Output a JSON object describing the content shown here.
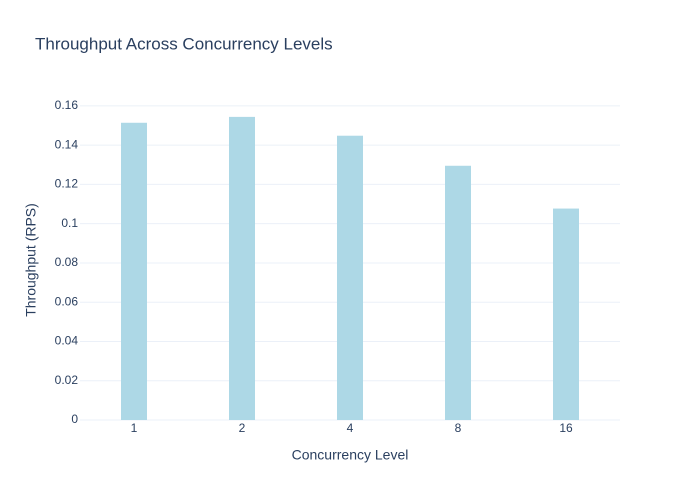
{
  "chart_data": {
    "type": "bar",
    "title": "Throughput Across Concurrency Levels",
    "x_label": "Concurrency Level",
    "y_label": "Throughput (RPS)",
    "categories": [
      "1",
      "2",
      "4",
      "8",
      "16"
    ],
    "values": [
      0.1514,
      0.1544,
      0.1448,
      0.1295,
      0.1077
    ],
    "color": "#add8e6",
    "ylim": [
      0,
      0.163
    ],
    "yticks": [
      0,
      0.02,
      0.04,
      0.06,
      0.08,
      0.1,
      0.12,
      0.14,
      0.16
    ],
    "grid": true
  }
}
